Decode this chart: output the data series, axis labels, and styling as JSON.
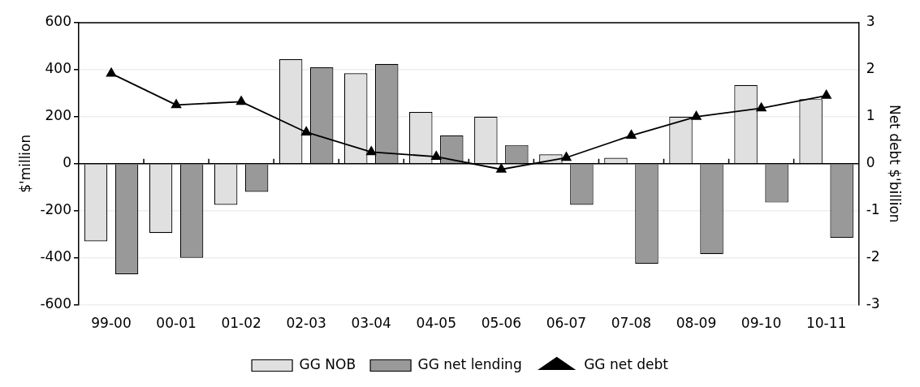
{
  "chart_data": {
    "type": "bar",
    "categories": [
      "99-00",
      "00-01",
      "01-02",
      "02-03",
      "03-04",
      "04-05",
      "05-06",
      "06-07",
      "07-08",
      "08-09",
      "09-10",
      "10-11"
    ],
    "ylabel": "$'million",
    "y2label": "Net debt $'billion",
    "ylim": [
      -600,
      600
    ],
    "yticks": [
      -600,
      -400,
      -200,
      0,
      200,
      400,
      600
    ],
    "y2lim": [
      -3,
      3
    ],
    "y2ticks": [
      -3,
      -2,
      -1,
      0,
      1,
      2,
      3
    ],
    "grid": "y",
    "legend": "bottom",
    "series": [
      {
        "name": "GG NOB",
        "color": "#e0e0e0",
        "values": [
          -330,
          -295,
          -175,
          445,
          385,
          220,
          200,
          40,
          25,
          200,
          335,
          275
        ]
      },
      {
        "name": "GG net lending",
        "color": "#999999",
        "values": [
          -470,
          -400,
          -120,
          410,
          425,
          120,
          80,
          -175,
          -425,
          -385,
          -165,
          -315
        ]
      },
      {
        "name": "GG net debt",
        "type": "line",
        "axis": "y2",
        "color": "#000000",
        "marker": "triangle",
        "values": [
          1.92,
          1.25,
          1.32,
          0.67,
          0.25,
          0.15,
          -0.12,
          0.13,
          0.6,
          1.0,
          1.18,
          1.45
        ]
      }
    ]
  }
}
